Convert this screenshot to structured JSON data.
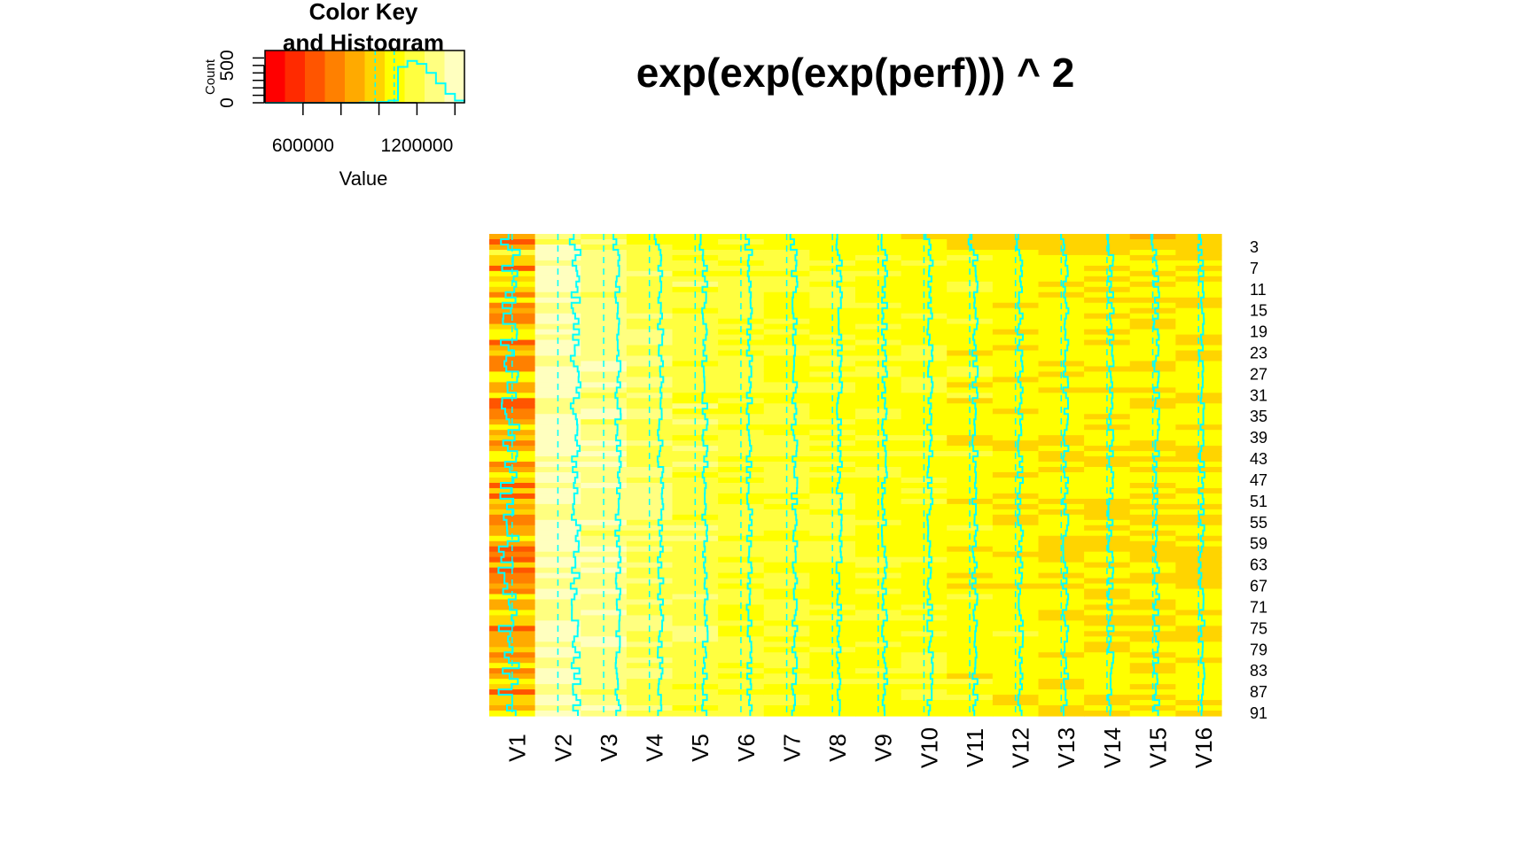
{
  "chart_data": {
    "type": "heatmap",
    "title": "exp(exp(exp(perf))) ^ 2",
    "color_key": {
      "title_line1": "Color Key",
      "title_line2": "and Histogram",
      "xlabel": "Value",
      "ylabel": "Count",
      "x_ticks": [
        600000,
        1200000
      ],
      "x_tick_labels": [
        "600000",
        "1200000"
      ],
      "y_ticks": [
        0,
        500
      ],
      "y_tick_labels": [
        "0",
        "500"
      ],
      "xlim": [
        400000,
        1450000
      ],
      "ylim": [
        0,
        700
      ],
      "colors": [
        "#ff0000",
        "#ff2a00",
        "#ff5500",
        "#ff8000",
        "#ffaa00",
        "#ffd400",
        "#ffff00",
        "#ffff40",
        "#ffff80",
        "#ffffbf"
      ],
      "histogram": {
        "bin_edges": [
          400000,
          500000,
          600000,
          700000,
          800000,
          900000,
          1000000,
          1050000,
          1100000,
          1150000,
          1200000,
          1250000,
          1300000,
          1350000,
          1400000,
          1450000
        ],
        "counts": [
          0,
          0,
          0,
          0,
          0,
          5,
          10,
          30,
          480,
          560,
          520,
          400,
          260,
          120,
          30
        ],
        "line_color": "#00ffff"
      }
    },
    "columns": [
      "V1",
      "V2",
      "V3",
      "V4",
      "V5",
      "V6",
      "V7",
      "V8",
      "V9",
      "V10",
      "V11",
      "V12",
      "V13",
      "V14",
      "V15",
      "V16"
    ],
    "row_labels_shown": [
      "3",
      "7",
      "11",
      "15",
      "19",
      "23",
      "27",
      "31",
      "35",
      "39",
      "43",
      "47",
      "51",
      "55",
      "59",
      "63",
      "67",
      "71",
      "75",
      "79",
      "83",
      "87",
      "91"
    ],
    "row_count": 91,
    "column_means": [
      880000,
      1380000,
      1300000,
      1220000,
      1190000,
      1160000,
      1140000,
      1120000,
      1110000,
      1100000,
      1080000,
      1070000,
      1060000,
      1050000,
      1040000,
      1030000
    ],
    "value_range": [
      400000,
      1450000
    ],
    "trace_line_color": "#00ffff"
  }
}
